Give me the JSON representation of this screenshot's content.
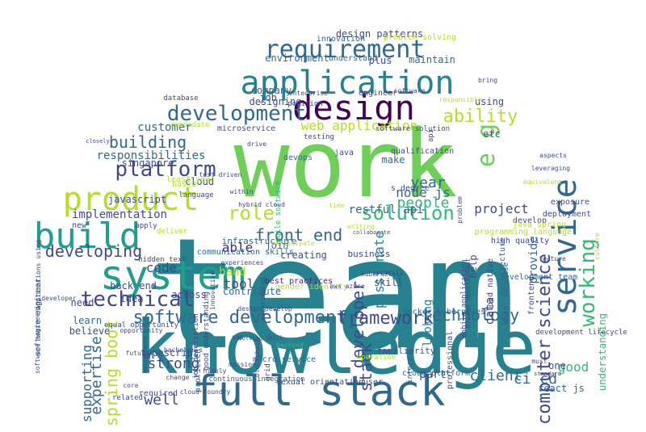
{
  "cloud": {
    "palette": [
      "#440154",
      "#482878",
      "#3e4a89",
      "#31688e",
      "#26828e",
      "#1f9e89",
      "#35b779",
      "#6ece58",
      "#b5de2b",
      "#fde725"
    ],
    "words": [
      {
        "text": "team",
        "c": "#26828e"
      },
      {
        "text": "work",
        "c": "#6ece58"
      },
      {
        "text": "knowledge",
        "c": "#26828e"
      },
      {
        "text": "full stack",
        "c": "#31688e"
      },
      {
        "text": "system",
        "c": "#1f9e89"
      },
      {
        "text": "application",
        "c": "#26828e"
      },
      {
        "text": "design",
        "c": "#440154"
      },
      {
        "text": "build",
        "c": "#1f9e89"
      },
      {
        "text": "product",
        "c": "#b5de2b"
      },
      {
        "text": "service",
        "c": "#31688e"
      },
      {
        "text": "requirement",
        "c": "#31688e"
      },
      {
        "text": "development",
        "c": "#31688e"
      },
      {
        "text": "platform",
        "c": "#3e4a89"
      },
      {
        "text": "technical",
        "c": "#3e4a89"
      },
      {
        "text": "e g",
        "c": "#6ece58"
      },
      {
        "text": "software development",
        "c": "#31688e"
      },
      {
        "text": "working",
        "c": "#35b779"
      },
      {
        "text": "role",
        "c": "#b5de2b"
      },
      {
        "text": "solution",
        "c": "#35b779"
      },
      {
        "text": "framework",
        "c": "#3e4a89"
      },
      {
        "text": "ability",
        "c": "#b5de2b"
      },
      {
        "text": "front end",
        "c": "#31688e"
      },
      {
        "text": "computer science",
        "c": "#3e4a89"
      },
      {
        "text": "building",
        "c": "#31688e"
      },
      {
        "text": "developing",
        "c": "#3e4a89"
      },
      {
        "text": "technology",
        "c": "#31688e"
      },
      {
        "text": "web application",
        "c": "#b5de2b"
      },
      {
        "text": "developer",
        "c": "#3e4a89"
      },
      {
        "text": "spring boot",
        "c": "#b5de2b"
      },
      {
        "text": "strong",
        "c": "#3e4a89"
      },
      {
        "text": "understanding",
        "c": "#35b779"
      },
      {
        "text": "passionate",
        "c": "#26828e"
      },
      {
        "text": "expertise",
        "c": "#31688e"
      },
      {
        "text": "people",
        "c": "#35b779"
      },
      {
        "text": "year",
        "c": "#31688e"
      },
      {
        "text": "stack",
        "c": "#3e4a89"
      },
      {
        "text": "client",
        "c": "#31688e"
      },
      {
        "text": "node js",
        "c": "#31688e"
      },
      {
        "text": "supporting",
        "c": "#31688e"
      },
      {
        "text": "project",
        "c": "#3e4a89"
      },
      {
        "text": "good",
        "c": "#35b779"
      },
      {
        "text": "tool",
        "c": "#3e4a89"
      },
      {
        "text": "well",
        "c": "#3e4a89"
      },
      {
        "text": "able",
        "c": "#482878"
      },
      {
        "text": "hand",
        "c": "#b5de2b"
      },
      {
        "text": "code",
        "c": "#3e4a89"
      },
      {
        "text": "ci cd",
        "c": "#31688e"
      },
      {
        "text": "looking",
        "c": "#26828e"
      },
      {
        "text": "data",
        "c": "#3e4a89"
      },
      {
        "text": "provide",
        "c": "#31688e"
      },
      {
        "text": "part",
        "c": "#3e4a89"
      },
      {
        "text": "customer",
        "c": "#31688e"
      },
      {
        "text": "implementation",
        "c": "#3e4a89"
      },
      {
        "text": "responsibilities",
        "c": "#31688e"
      },
      {
        "text": "maintain",
        "c": "#31688e"
      },
      {
        "text": "design patterns",
        "c": "#3e4a89"
      },
      {
        "text": "infrastructure",
        "c": "#31688e"
      },
      {
        "text": "best practices",
        "c": "#482878"
      },
      {
        "text": "javascript",
        "c": "#3e4a89"
      },
      {
        "text": "restful api",
        "c": "#31688e"
      },
      {
        "text": "communication skills",
        "c": "#31688e"
      },
      {
        "text": "business",
        "c": "#3e4a89"
      },
      {
        "text": "back end",
        "c": "#3e4a89"
      },
      {
        "text": "typescript",
        "c": "#3e4a89"
      },
      {
        "text": "micro service",
        "c": "#31688e"
      },
      {
        "text": "cloud platform",
        "c": "#31688e"
      },
      {
        "text": "docker kubernetes",
        "c": "#31688e"
      },
      {
        "text": "gender identity",
        "c": "#b5de2b"
      },
      {
        "text": "sexual orientation",
        "c": "#3e4a89"
      },
      {
        "text": "continuous integration",
        "c": "#31688e"
      },
      {
        "text": "development team",
        "c": "#31688e"
      },
      {
        "text": "development lifecycle",
        "c": "#3e4a89"
      },
      {
        "text": "software engineer",
        "c": "#31688e"
      },
      {
        "text": "microservice",
        "c": "#3e4a89"
      },
      {
        "text": "devops",
        "c": "#31688e"
      },
      {
        "text": "problem solving",
        "c": "#b5de2b"
      },
      {
        "text": "innovation",
        "c": "#31688e"
      },
      {
        "text": "cloud",
        "c": "#3e4a89"
      },
      {
        "text": "singapore",
        "c": "#3e4a89"
      },
      {
        "text": "across",
        "c": "#3e4a89"
      },
      {
        "text": "contribute",
        "c": "#31688e"
      },
      {
        "text": "creating",
        "c": "#3e4a89"
      },
      {
        "text": "join",
        "c": "#31688e"
      },
      {
        "text": "skill",
        "c": "#3e4a89"
      },
      {
        "text": "need",
        "c": "#3e4a89"
      },
      {
        "text": "learn",
        "c": "#31688e"
      },
      {
        "text": "believe",
        "c": "#3e4a89"
      },
      {
        "text": "idea",
        "c": "#3e4a89"
      },
      {
        "text": "help",
        "c": "#3e4a89"
      },
      {
        "text": "etc",
        "c": "#3e4a89"
      },
      {
        "text": "make",
        "c": "#31688e"
      },
      {
        "text": "plus",
        "c": "#3e4a89"
      },
      {
        "text": "engineer",
        "c": "#3e4a89"
      },
      {
        "text": "using",
        "c": "#3e4a89"
      },
      {
        "text": "job",
        "c": "#3e4a89"
      },
      {
        "text": "company",
        "c": "#31688e"
      },
      {
        "text": "designing",
        "c": "#3e4a89"
      },
      {
        "text": "environment",
        "c": "#31688e"
      },
      {
        "text": "understand",
        "c": "#31688e"
      },
      {
        "text": "java",
        "c": "#3e4a89"
      },
      {
        "text": "qualification",
        "c": "#3e4a89"
      },
      {
        "text": "high quality",
        "c": "#3e4a89"
      },
      {
        "text": "deployment",
        "c": "#3e4a89"
      },
      {
        "text": "exposure",
        "c": "#3e4a89"
      },
      {
        "text": "nosql database",
        "c": "#31688e"
      },
      {
        "text": "frontend",
        "c": "#3e4a89"
      },
      {
        "text": "architecture",
        "c": "#31688e"
      },
      {
        "text": "familiarity",
        "c": "#3e4a89"
      },
      {
        "text": "proficient",
        "c": "#31688e"
      },
      {
        "text": "required",
        "c": "#3e4a89"
      },
      {
        "text": "related",
        "c": "#3e4a89"
      },
      {
        "text": "interest",
        "c": "#31688e"
      },
      {
        "text": "professional",
        "c": "#3e4a89"
      },
      {
        "text": "one",
        "c": "#3e4a89"
      },
      {
        "text": "react js",
        "c": "#31688e"
      },
      {
        "text": "develop",
        "c": "#3e4a89"
      },
      {
        "text": "java spring",
        "c": "#b5de2b"
      },
      {
        "text": "testing",
        "c": "#3e4a89"
      },
      {
        "text": "programming language",
        "c": "#b5de2b"
      },
      {
        "text": "cloud native",
        "c": "#3e4a89"
      },
      {
        "text": "least year",
        "c": "#b5de2b"
      },
      {
        "text": "based",
        "c": "#b5de2b"
      },
      {
        "text": "language",
        "c": "#3e4a89"
      },
      {
        "text": "new",
        "c": "#3e4a89"
      },
      {
        "text": "apply",
        "c": "#3e4a89"
      },
      {
        "text": "deliver",
        "c": "#b5de2b"
      },
      {
        "text": "hidden text",
        "c": "#3e4a89"
      },
      {
        "text": "agile software",
        "c": "#35b779"
      },
      {
        "text": "database",
        "c": "#3e4a89"
      },
      {
        "text": "s degree",
        "c": "#3e4a89"
      },
      {
        "text": "candidate",
        "c": "#b5de2b"
      },
      {
        "text": "position",
        "c": "#3e4a89"
      },
      {
        "text": "software solution",
        "c": "#3e4a89"
      },
      {
        "text": "good understanding",
        "c": "#3e4a89"
      },
      {
        "text": "job description",
        "c": "#3e4a89"
      },
      {
        "text": "user",
        "c": "#3e4a89"
      },
      {
        "text": "equal opportunity",
        "c": "#3e4a89"
      },
      {
        "text": "api",
        "c": "#3e4a89"
      },
      {
        "text": "mobile application",
        "c": "#3e4a89"
      },
      {
        "text": "software engineering",
        "c": "#3e4a89"
      },
      {
        "text": "aws azure",
        "c": "#3e4a89"
      },
      {
        "text": "kubernetes",
        "c": "#3e4a89"
      },
      {
        "text": "security",
        "c": "#3e4a89"
      },
      {
        "text": "opportunity",
        "c": "#3e4a89"
      },
      {
        "text": "operation",
        "c": "#b5de2b"
      },
      {
        "text": "bachelor s",
        "c": "#3e4a89"
      },
      {
        "text": "future",
        "c": "#3e4a89"
      },
      {
        "text": "sql",
        "c": "#3e4a89"
      },
      {
        "text": "test driven",
        "c": "#3e4a89"
      },
      {
        "text": "innovative",
        "c": "#3e4a89"
      },
      {
        "text": "design develop",
        "c": "#3e4a89"
      },
      {
        "text": "change",
        "c": "#3e4a89"
      },
      {
        "text": "cloud foundry",
        "c": "#3e4a89"
      },
      {
        "text": "mission",
        "c": "#3e4a89"
      },
      {
        "text": "drive",
        "c": "#3e4a89"
      },
      {
        "text": "developer",
        "c": "#3e4a89"
      },
      {
        "text": "experiences",
        "c": "#3e4a89"
      },
      {
        "text": "participate",
        "c": "#b5de2b"
      },
      {
        "text": "enterprise",
        "c": "#3e4a89"
      },
      {
        "text": "highly",
        "c": "#3e4a89"
      },
      {
        "text": "must",
        "c": "#3e4a89"
      },
      {
        "text": "core",
        "c": "#3e4a89"
      },
      {
        "text": "standard",
        "c": "#3e4a89"
      },
      {
        "text": "applications using",
        "c": "#3e4a89"
      },
      {
        "text": "problem",
        "c": "#3e4a89"
      },
      {
        "text": "sap",
        "c": "#3e4a89"
      },
      {
        "text": "feature",
        "c": "#3e4a89"
      },
      {
        "text": "culture",
        "c": "#b5de2b"
      },
      {
        "text": "collaborate",
        "c": "#3e4a89"
      },
      {
        "text": "driven development",
        "c": "#3e4a89"
      },
      {
        "text": "within",
        "c": "#3e4a89"
      },
      {
        "text": "solving skill",
        "c": "#3e4a89"
      },
      {
        "text": "responsible",
        "c": "#b5de2b"
      },
      {
        "text": "time",
        "c": "#b5de2b"
      },
      {
        "text": "grid",
        "c": "#3e4a89"
      },
      {
        "text": "blockchain",
        "c": "#3e4a89"
      },
      {
        "text": "backend",
        "c": "#35b779"
      },
      {
        "text": "writing",
        "c": "#b5de2b"
      },
      {
        "text": "equivalent",
        "c": "#b5de2b"
      },
      {
        "text": "leveraging",
        "c": "#3e4a89"
      },
      {
        "text": "aspects",
        "c": "#3e4a89"
      },
      {
        "text": "bring",
        "c": "#3e4a89"
      },
      {
        "text": "experienced",
        "c": "#3e4a89"
      },
      {
        "text": "software",
        "c": "#3e4a89"
      },
      {
        "text": "hybrid cloud",
        "c": "#3e4a89"
      },
      {
        "text": "closely",
        "c": "#3e4a89"
      },
      {
        "text": "maintenance",
        "c": "#3e4a89"
      }
    ]
  }
}
